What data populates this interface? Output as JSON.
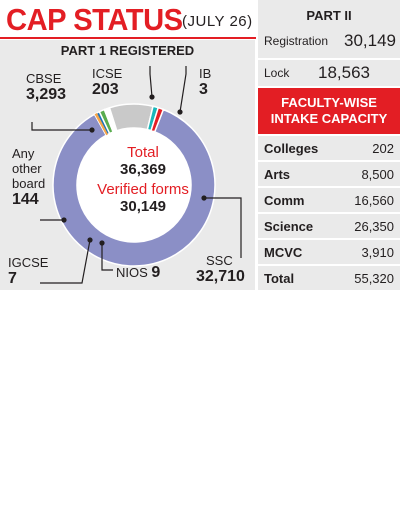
{
  "header": {
    "title": "CAP STATUS",
    "date": "(JULY 26)"
  },
  "colors": {
    "accent": "#e31e24",
    "panel": "#eaeaea",
    "ssc": "#8b8fc6",
    "cbse": "#c9c9c9",
    "other": "#ffffff",
    "igcse": "#5aac4f",
    "nios_orange": "#f6a54a",
    "nios_blue": "#1b75bc",
    "icse": "#19b6b9",
    "ib": "#e31e24"
  },
  "chart_data": {
    "type": "pie",
    "title": "PART 1 REGISTERED",
    "total_label": "Total",
    "total_value": "36,369",
    "verified_label": "Verified forms",
    "verified_value": "30,149",
    "slices": [
      {
        "name": "SSC",
        "value": 32710,
        "display": "32,710"
      },
      {
        "name": "NIOS",
        "value": 9,
        "display": "9"
      },
      {
        "name": "IGCSE",
        "value": 7,
        "display": "7"
      },
      {
        "name": "Any other board",
        "value": 144,
        "display": "144"
      },
      {
        "name": "CBSE",
        "value": 3293,
        "display": "3,293"
      },
      {
        "name": "ICSE",
        "value": 203,
        "display": "203"
      },
      {
        "name": "IB",
        "value": 3,
        "display": "3"
      }
    ],
    "other_label_lines": [
      "Any",
      "other",
      "board"
    ]
  },
  "part2": {
    "title": "PART II",
    "registration_label": "Registration",
    "registration_value": "30,149",
    "lock_label": "Lock",
    "lock_value": "18,563"
  },
  "faculty": {
    "title_line1": "FACULTY-WISE",
    "title_line2": "INTAKE CAPACITY",
    "rows": [
      {
        "name": "Colleges",
        "value": "202"
      },
      {
        "name": "Arts",
        "value": "8,500"
      },
      {
        "name": "Comm",
        "value": "16,560"
      },
      {
        "name": "Science",
        "value": "26,350"
      },
      {
        "name": "MCVC",
        "value": "3,910"
      },
      {
        "name": "Total",
        "value": "55,320"
      }
    ]
  }
}
